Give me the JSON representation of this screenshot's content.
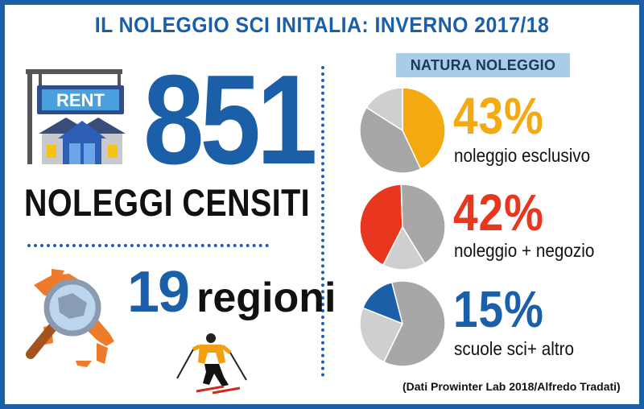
{
  "header": {
    "title": "IL NOLEGGIO SCI INITALIA: INVERNO 2017/18"
  },
  "stats": {
    "rental_sign": "RENT",
    "count": "851",
    "count_label": "NOLEGGI CENSITI",
    "regions_number": "19",
    "regions_word": "regioni"
  },
  "natura": {
    "heading": "NATURA NOLEGGIO",
    "items": [
      {
        "percent": "43%",
        "label": "noleggio esclusivo",
        "value": 43,
        "color": "#f5a911"
      },
      {
        "percent": "42%",
        "label": "noleggio + negozio",
        "value": 42,
        "color": "#e8361f"
      },
      {
        "percent": "15%",
        "label": "scuole sci+ altro",
        "value": 15,
        "color": "#1b5fa8"
      }
    ]
  },
  "source": "(Dati Prowinter Lab 2018/Alfredo Tradati)",
  "icons": [
    "rent-shop-icon",
    "italy-map-magnifier-icon",
    "skier-icon"
  ]
}
